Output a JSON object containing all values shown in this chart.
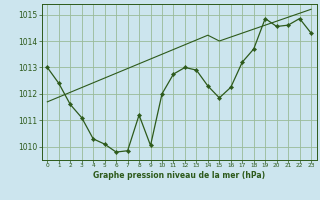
{
  "title": "Graphe pression niveau de la mer (hPa)",
  "bg_color": "#cce5ee",
  "grid_color": "#99bb99",
  "line_color": "#2d5a1b",
  "x_hours": [
    0,
    1,
    2,
    3,
    4,
    5,
    6,
    7,
    8,
    9,
    10,
    11,
    12,
    13,
    14,
    15,
    16,
    17,
    18,
    19,
    20,
    21,
    22,
    23
  ],
  "y_main": [
    1013.0,
    1012.4,
    1011.6,
    1011.1,
    1010.3,
    1010.1,
    1009.8,
    1009.85,
    1011.2,
    1010.05,
    1012.0,
    1012.75,
    1013.0,
    1012.9,
    1012.3,
    1011.85,
    1012.25,
    1013.2,
    1013.7,
    1014.85,
    1014.55,
    1014.6,
    1014.85,
    1014.3
  ],
  "y_trend": [
    1011.7,
    1011.88,
    1012.06,
    1012.24,
    1012.42,
    1012.6,
    1012.78,
    1012.96,
    1013.14,
    1013.32,
    1013.5,
    1013.68,
    1013.86,
    1014.04,
    1014.22,
    1014.0,
    1014.15,
    1014.3,
    1014.45,
    1014.6,
    1014.75,
    1014.9,
    1015.05,
    1015.2
  ],
  "ylim": [
    1009.5,
    1015.4
  ],
  "yticks": [
    1010,
    1011,
    1012,
    1013,
    1014,
    1015
  ],
  "xlim": [
    -0.5,
    23.5
  ],
  "xticks": [
    0,
    1,
    2,
    3,
    4,
    5,
    6,
    7,
    8,
    9,
    10,
    11,
    12,
    13,
    14,
    15,
    16,
    17,
    18,
    19,
    20,
    21,
    22,
    23
  ],
  "xlabel_fontsize": 5.5,
  "ytick_fontsize": 5.5,
  "xtick_fontsize": 4.2
}
